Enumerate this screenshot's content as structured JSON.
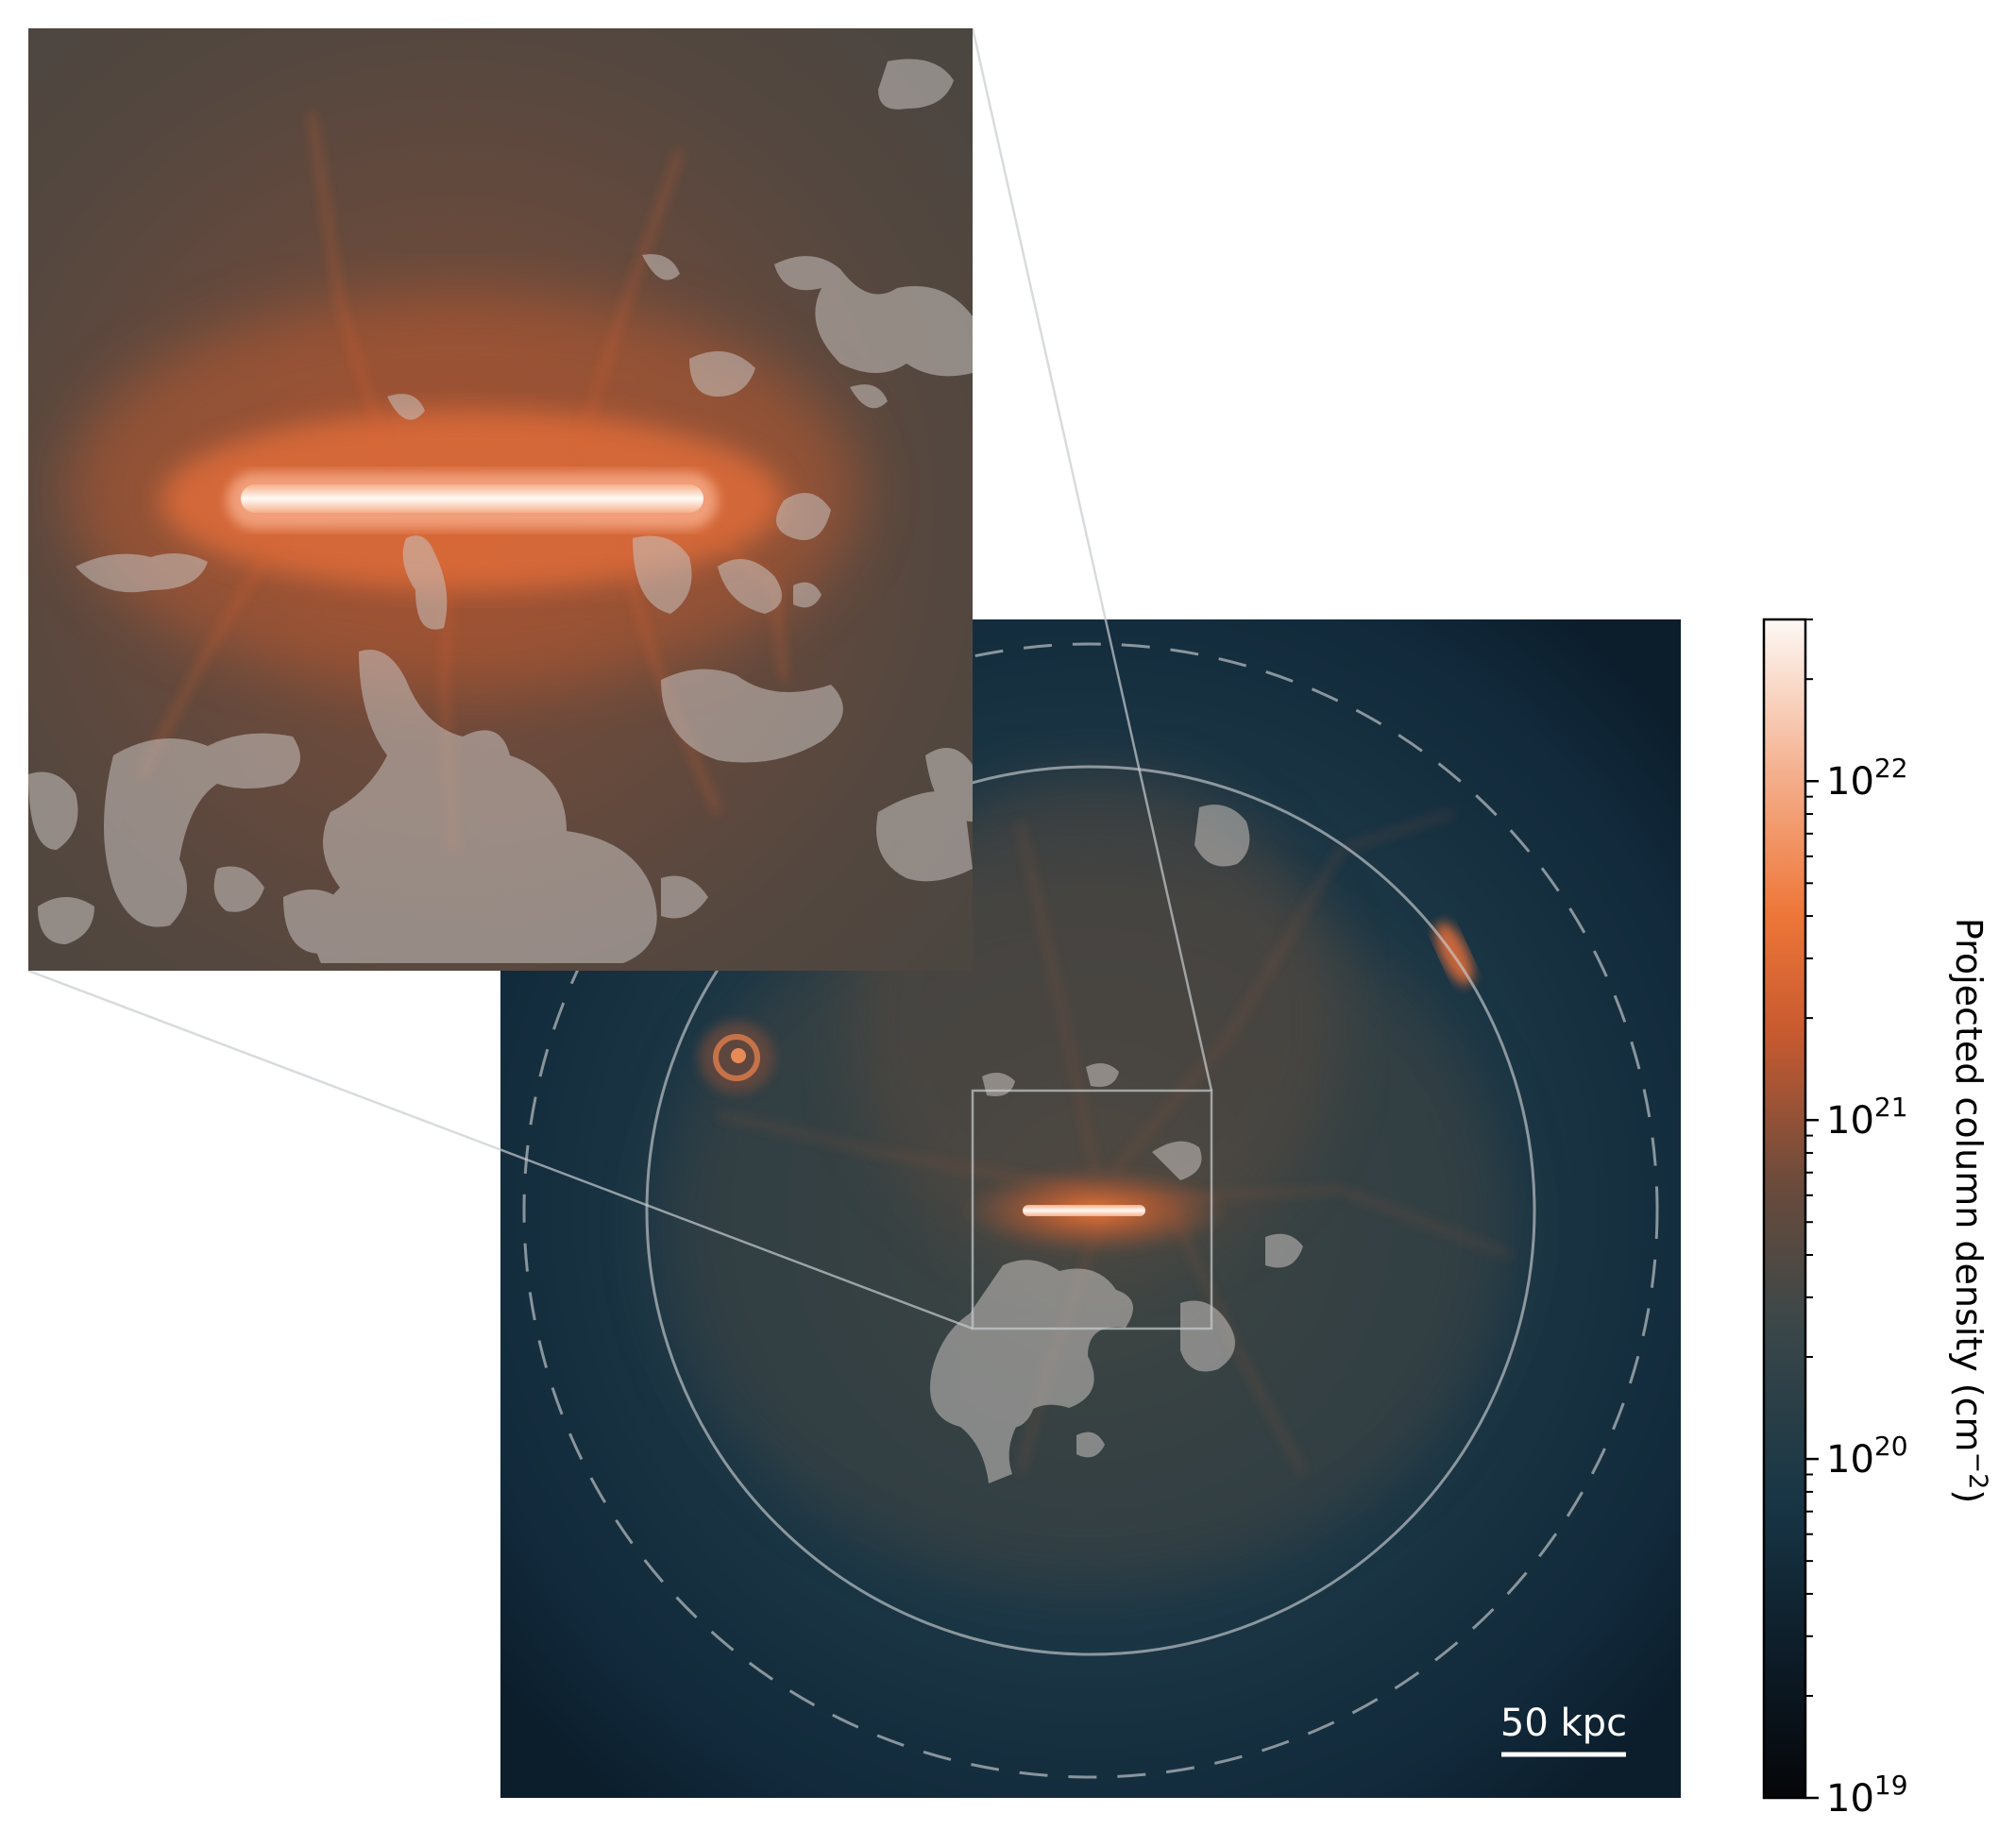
{
  "scalebar": {
    "label": "50 kpc"
  },
  "colorbar": {
    "title_main": "Projected column density (cm",
    "title_exp": "−2",
    "title_close": ")",
    "scale": "log",
    "range": [
      "1e19",
      "3e22"
    ],
    "ticks": [
      {
        "base": "10",
        "exp": "19",
        "value": 1e+19
      },
      {
        "base": "10",
        "exp": "20",
        "value": 1e+20
      },
      {
        "base": "10",
        "exp": "21",
        "value": 1e+21
      },
      {
        "base": "10",
        "exp": "22",
        "value": 1e+22
      }
    ],
    "colors": [
      "#050608",
      "#0f2535",
      "#1a3a4a",
      "#3f4a4c",
      "#6e4a3a",
      "#c75a2e",
      "#ee7638",
      "#f4a582",
      "#fbe8dc",
      "#fdf7f4"
    ]
  },
  "colors": {
    "background_halo": "#13303f",
    "filament_orange": "#e8703a",
    "disk_core": "#fff3ea",
    "overlay_patches": "#c9c3c0",
    "circle_lines": "#c8cdd0"
  }
}
